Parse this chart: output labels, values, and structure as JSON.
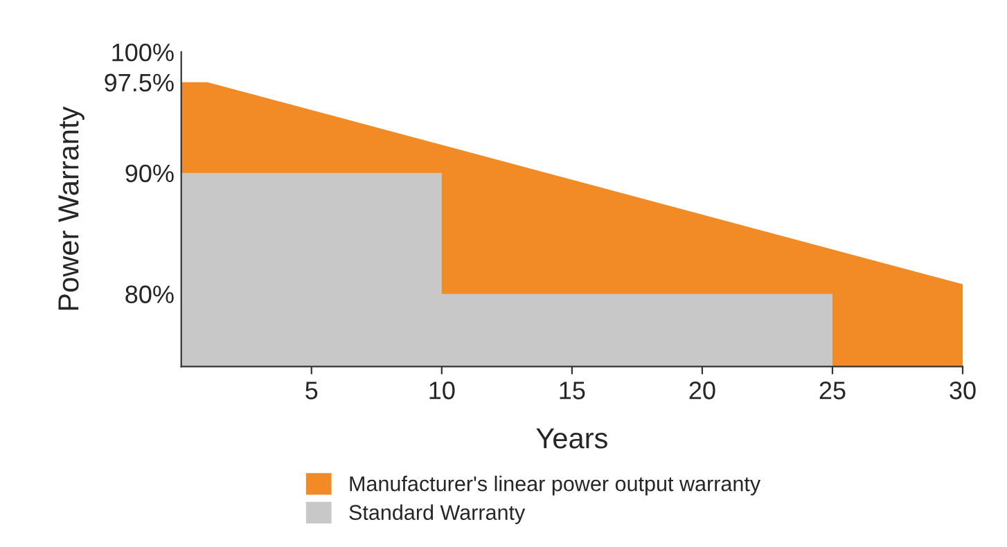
{
  "chart_data": {
    "type": "area",
    "xlabel": "Years",
    "ylabel": "Power Warranty",
    "series": [
      {
        "name": "Manufacturer's linear power output warranty",
        "color": "#f28a25",
        "x": [
          0,
          1,
          30
        ],
        "values": [
          97.5,
          97.5,
          80.8
        ]
      },
      {
        "name": "Standard Warranty",
        "color": "#c8c8c8",
        "x": [
          0,
          10,
          10,
          25
        ],
        "values": [
          90,
          90,
          80,
          80
        ]
      }
    ],
    "xlim": [
      0,
      30
    ],
    "xticks": [
      5,
      10,
      15,
      20,
      25,
      30
    ],
    "ylim": [
      74,
      100
    ],
    "yticks": [
      {
        "value": 80,
        "label": "80%"
      },
      {
        "value": 90,
        "label": "90%"
      },
      {
        "value": 97.5,
        "label": "97.5%"
      },
      {
        "value": 100,
        "label": "100%"
      }
    ],
    "grid": false,
    "legend": "bottom"
  }
}
